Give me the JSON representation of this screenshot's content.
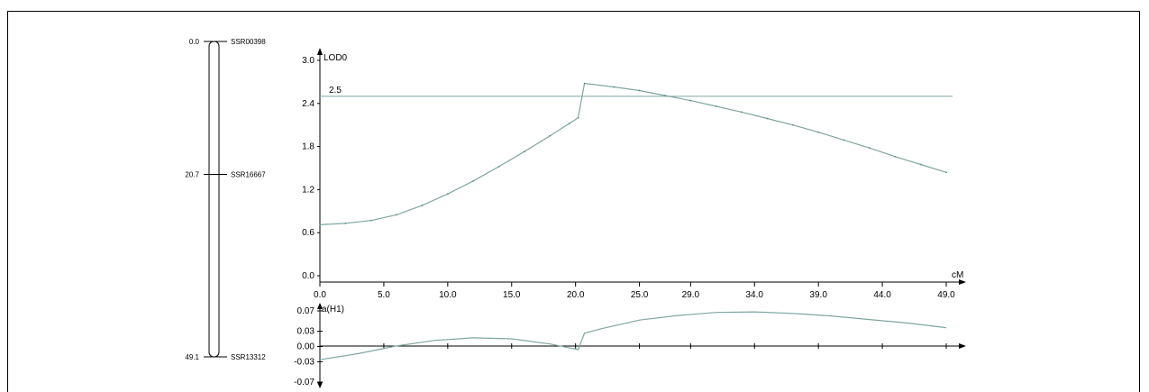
{
  "linkage_map": {
    "markers": [
      {
        "position": "0.0",
        "name": "SSR00398",
        "cm": 0.0
      },
      {
        "position": "20.7",
        "name": "SSR16667",
        "cm": 20.7
      },
      {
        "position": "49.1",
        "name": "SSR13312",
        "cm": 49.1
      }
    ]
  },
  "chart_data": [
    {
      "type": "line",
      "ylabel": "LOD0",
      "xlabel": "cM",
      "y_ticks": [
        "0.0",
        "0.6",
        "1.2",
        "1.8",
        "2.4",
        "3.0"
      ],
      "x_ticks": [
        {
          "label": "0.0",
          "value": 0.0
        },
        {
          "label": "5.0",
          "value": 5.0
        },
        {
          "label": "10.0",
          "value": 10.0
        },
        {
          "label": "15.0",
          "value": 15.0
        },
        {
          "label": "20.0",
          "value": 20.0
        },
        {
          "label": "25.0",
          "value": 25.0
        },
        {
          "label": "29.0",
          "value": 29.0
        },
        {
          "label": "34.0",
          "value": 34.0
        },
        {
          "label": "39.0",
          "value": 39.0
        },
        {
          "label": "44.0",
          "value": 44.0
        },
        {
          "label": "49.0",
          "value": 49.0
        }
      ],
      "ylim": [
        0.0,
        3.0
      ],
      "xlim": [
        0.0,
        49.0
      ],
      "threshold": {
        "value": 2.5,
        "label": "2.5"
      },
      "series": [
        {
          "x": [
            0,
            2,
            4,
            6,
            8,
            10,
            12,
            14,
            16,
            18,
            19.5,
            20.2,
            20.7,
            23,
            25,
            27,
            29,
            31,
            33,
            35,
            37,
            39,
            41,
            43,
            45,
            47,
            49
          ],
          "y": [
            0.71,
            0.73,
            0.77,
            0.85,
            0.98,
            1.14,
            1.32,
            1.52,
            1.73,
            1.95,
            2.12,
            2.2,
            2.68,
            2.63,
            2.58,
            2.51,
            2.44,
            2.36,
            2.28,
            2.19,
            2.1,
            2.0,
            1.89,
            1.78,
            1.66,
            1.55,
            1.44
          ]
        }
      ]
    },
    {
      "type": "line",
      "ylabel": "a(H1)",
      "y_ticks": [
        "0.07",
        "0.03",
        "0.00",
        "-0.03",
        "-0.07"
      ],
      "y_tick_values": [
        0.07,
        0.03,
        0.0,
        -0.03,
        -0.07
      ],
      "ylim": [
        -0.07,
        0.07
      ],
      "xlim": [
        0.0,
        49.0
      ],
      "series": [
        {
          "x": [
            0,
            3,
            6,
            9,
            12,
            15,
            18,
            20.2,
            20.7,
            22,
            25,
            28,
            31,
            34,
            37,
            40,
            43,
            46,
            49
          ],
          "y": [
            -0.026,
            -0.014,
            0.001,
            0.012,
            0.017,
            0.015,
            0.005,
            -0.006,
            0.026,
            0.035,
            0.052,
            0.061,
            0.067,
            0.068,
            0.065,
            0.06,
            0.053,
            0.046,
            0.037
          ]
        }
      ]
    }
  ]
}
